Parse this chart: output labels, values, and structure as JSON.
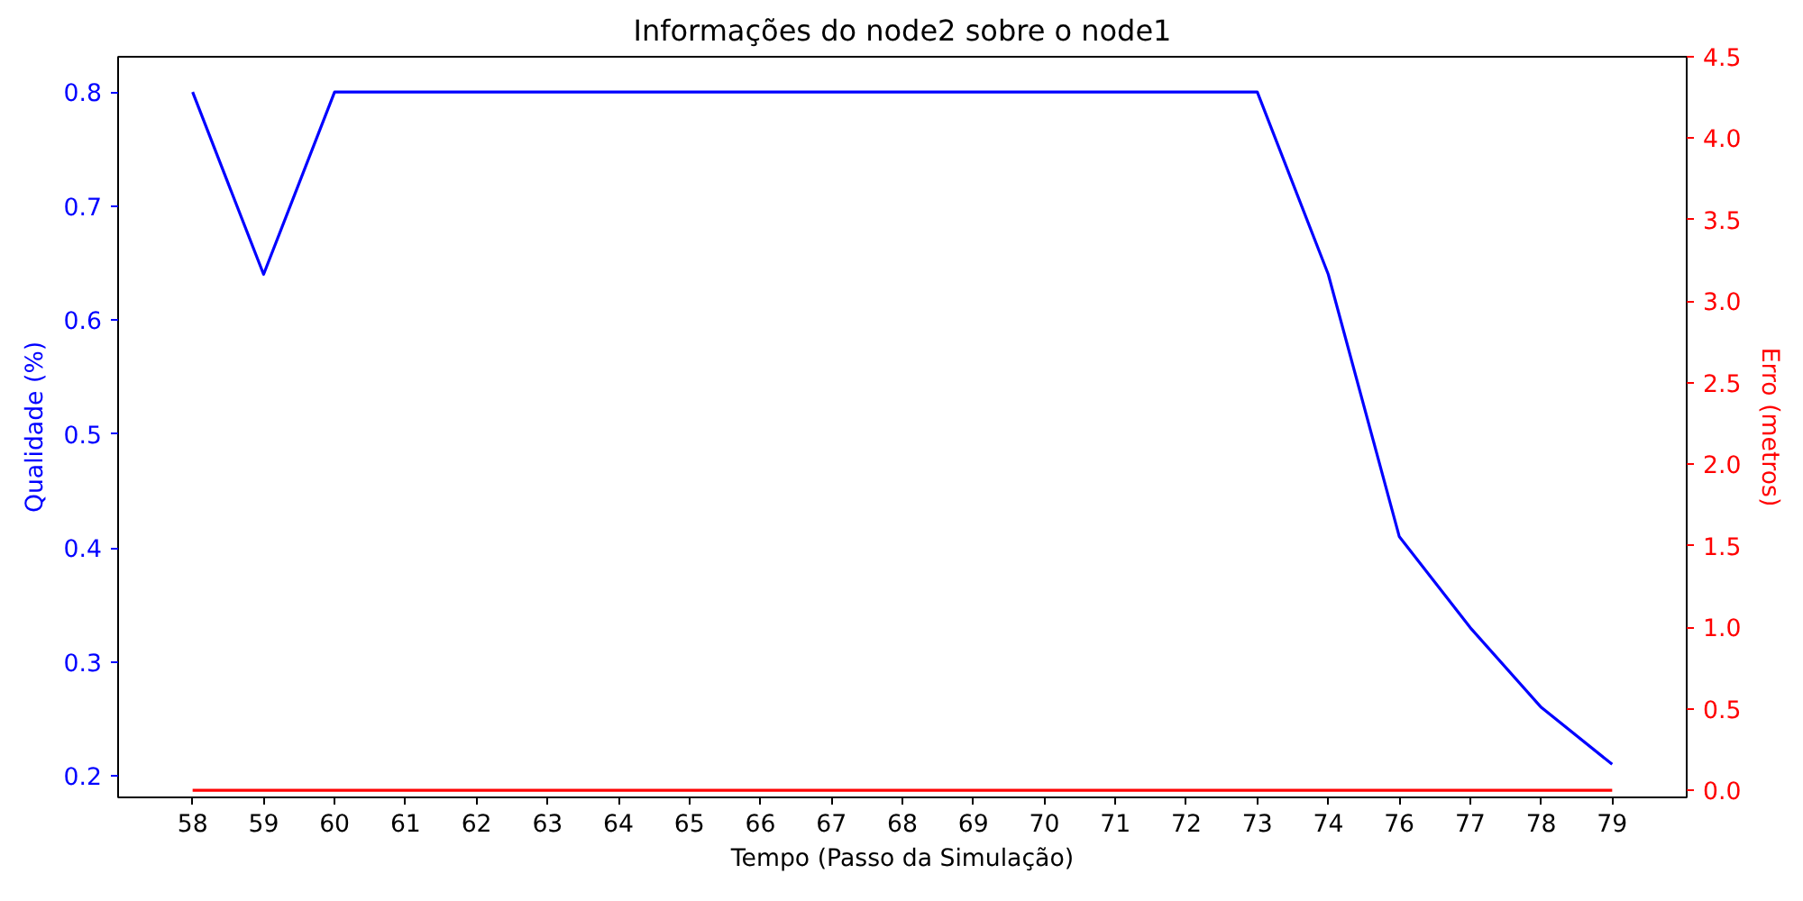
{
  "chart_data": {
    "type": "line",
    "title": "Informações do node2 sobre o node1",
    "xlabel": "Tempo (Passo da Simulação)",
    "ylabel": "Qualidade (%)",
    "y2label": "Erro (metros)",
    "categories": [
      "58",
      "59",
      "60",
      "61",
      "62",
      "63",
      "64",
      "65",
      "66",
      "67",
      "68",
      "69",
      "70",
      "71",
      "72",
      "73",
      "74",
      "76",
      "77",
      "78",
      "79"
    ],
    "series": [
      {
        "color": "#0000ff",
        "values": [
          0.8,
          0.64,
          0.8,
          0.8,
          0.8,
          0.8,
          0.8,
          0.8,
          0.8,
          0.8,
          0.8,
          0.8,
          0.8,
          0.8,
          0.8,
          0.8,
          0.64,
          0.41,
          0.33,
          0.26,
          0.21
        ]
      },
      {
        "color": "#ff0000",
        "axis": "y2",
        "values": [
          0,
          0,
          0,
          0,
          0,
          0,
          0,
          0,
          0,
          0,
          0,
          0,
          0,
          0,
          0,
          0,
          0,
          0,
          0,
          0,
          0
        ]
      }
    ],
    "ylim": [
      0.181,
      0.831
    ],
    "yticks": [
      0.2,
      0.3,
      0.4,
      0.5,
      0.6,
      0.7,
      0.8
    ],
    "y2lim": [
      -0.043,
      4.5
    ],
    "y2ticks": [
      {
        "value": 0,
        "label": "0.0"
      },
      0.5,
      {
        "value": 1,
        "label": "1.0"
      },
      1.5,
      {
        "value": 2,
        "label": "2.0"
      },
      2.5,
      {
        "value": 3,
        "label": "3.0"
      },
      3.5,
      {
        "value": 4,
        "label": "4.0"
      },
      4.5
    ],
    "grid": false
  }
}
